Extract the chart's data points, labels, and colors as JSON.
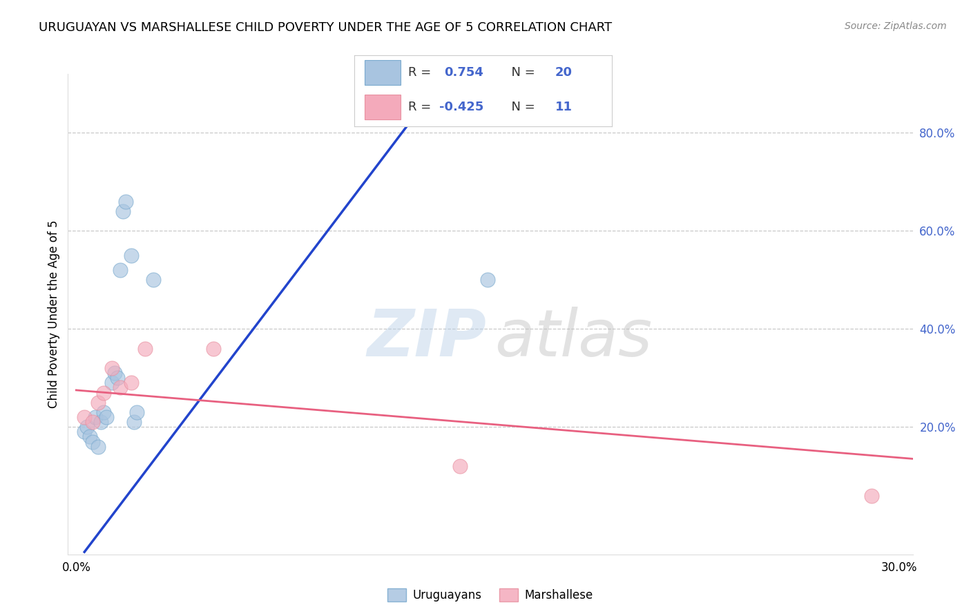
{
  "title": "URUGUAYAN VS MARSHALLESE CHILD POVERTY UNDER THE AGE OF 5 CORRELATION CHART",
  "source": "Source: ZipAtlas.com",
  "ylabel": "Child Poverty Under the Age of 5",
  "xlim": [
    -0.003,
    0.305
  ],
  "ylim": [
    -0.06,
    0.92
  ],
  "xtick_positions": [
    0.0,
    0.05,
    0.1,
    0.15,
    0.2,
    0.25,
    0.3
  ],
  "xtick_labels": [
    "0.0%",
    "",
    "",
    "",
    "",
    "",
    "30.0%"
  ],
  "yticks_right": [
    0.2,
    0.4,
    0.6,
    0.8
  ],
  "ytick_right_labels": [
    "20.0%",
    "40.0%",
    "60.0%",
    "80.0%"
  ],
  "blue_R": "0.754",
  "blue_N": "20",
  "pink_R": "-0.425",
  "pink_N": "11",
  "blue_scatter_x": [
    0.003,
    0.004,
    0.005,
    0.006,
    0.007,
    0.008,
    0.009,
    0.01,
    0.011,
    0.013,
    0.014,
    0.015,
    0.016,
    0.017,
    0.018,
    0.02,
    0.021,
    0.022,
    0.028,
    0.15
  ],
  "blue_scatter_y": [
    0.19,
    0.2,
    0.18,
    0.17,
    0.22,
    0.16,
    0.21,
    0.23,
    0.22,
    0.29,
    0.31,
    0.3,
    0.52,
    0.64,
    0.66,
    0.55,
    0.21,
    0.23,
    0.5,
    0.5
  ],
  "pink_scatter_x": [
    0.003,
    0.006,
    0.008,
    0.01,
    0.013,
    0.016,
    0.02,
    0.025,
    0.05,
    0.14,
    0.29
  ],
  "pink_scatter_y": [
    0.22,
    0.21,
    0.25,
    0.27,
    0.32,
    0.28,
    0.29,
    0.36,
    0.36,
    0.12,
    0.06
  ],
  "blue_line_x": [
    0.003,
    0.135
  ],
  "blue_line_y": [
    -0.055,
    0.92
  ],
  "pink_line_x": [
    0.0,
    0.305
  ],
  "pink_line_y": [
    0.275,
    0.135
  ],
  "blue_color": "#A8C4E0",
  "pink_color": "#F4AABB",
  "blue_edge_color": "#7AAACE",
  "pink_edge_color": "#E890A0",
  "blue_line_color": "#2244CC",
  "pink_line_color": "#E86080",
  "background_color": "#FFFFFF",
  "grid_color": "#C8C8C8",
  "legend_text_color": "#4466CC",
  "legend_label_color": "#333333"
}
